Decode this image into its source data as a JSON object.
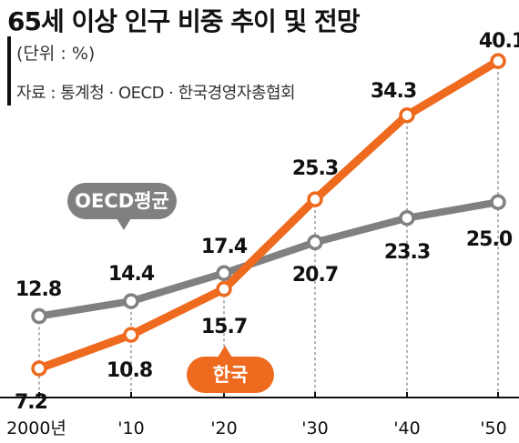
{
  "title": "65세 이상 인구 비중 추이 및 전망",
  "unit": "(단위 : %)",
  "source": "자료 : 통계청 · OECD · 한국경영자총협회",
  "chart_data": {
    "type": "line",
    "categories": [
      "2000년",
      "'10",
      "'20",
      "'30",
      "'40",
      "'50"
    ],
    "series": [
      {
        "name": "OECD평균",
        "color": "#808080",
        "values": [
          12.8,
          14.4,
          17.4,
          20.7,
          23.3,
          25.0
        ],
        "labels": [
          "12.8",
          "14.4",
          "17.4",
          "20.7",
          "23.3",
          "25.0"
        ]
      },
      {
        "name": "한국",
        "color": "#ee6a1f",
        "values": [
          7.2,
          10.8,
          15.7,
          25.3,
          34.3,
          40.1
        ],
        "labels": [
          "7.2",
          "10.8",
          "15.7",
          "25.3",
          "34.3",
          "40.1"
        ]
      }
    ],
    "ylim": [
      5,
      42
    ],
    "grid": false,
    "legend": "inline-badges"
  }
}
